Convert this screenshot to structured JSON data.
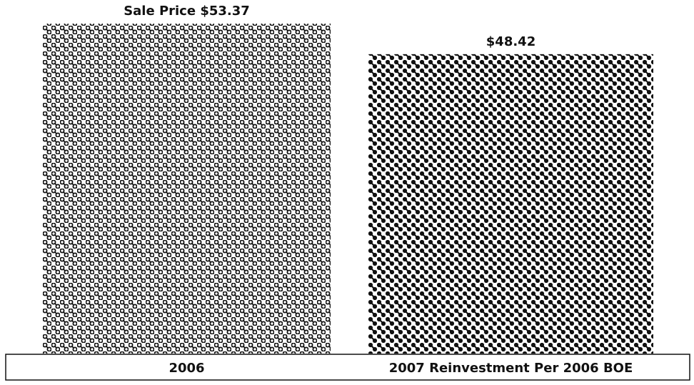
{
  "chart_data": {
    "type": "bar",
    "categories": [
      "2006",
      "2007 Reinvestment Per 2006 BOE"
    ],
    "values": [
      53.37,
      48.42
    ],
    "value_labels": [
      "Sale Price $53.37",
      "$48.42"
    ]
  }
}
